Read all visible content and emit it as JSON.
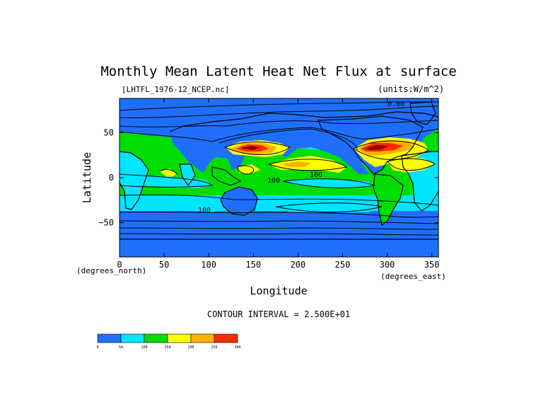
{
  "chart_data": {
    "type": "heatmap",
    "title": "Monthly Mean Latent Heat Net Flux at surface",
    "subtitle_left": "[LHTFL_1976-12_NCEP.nc]",
    "subtitle_right": "(units:W/m^2)",
    "xlabel": "Longitude",
    "ylabel": "Latitude",
    "x_unit_label": "(degrees_east)",
    "y_unit_label": "(degrees_north)",
    "xlim": [
      0,
      357.5
    ],
    "ylim": [
      -88,
      88
    ],
    "x_ticks": [
      "0",
      "50",
      "100",
      "150",
      "200",
      "250",
      "300",
      "350"
    ],
    "y_ticks": [
      "50",
      "0",
      "−50"
    ],
    "footer": "CONTOUR INTERVAL = 2.500E+01",
    "colorbar": {
      "levels": [
        0,
        50,
        100,
        150,
        200,
        250,
        300
      ],
      "labels": [
        "0",
        "50",
        "100",
        "150",
        "200",
        "250",
        "300"
      ],
      "colors": [
        "#1f6fff",
        "#00e5ff",
        "#00dd00",
        "#ffff00",
        "#ffb000",
        "#ff2a00"
      ]
    },
    "contour_labels": [
      "100",
      "100",
      "100",
      "0.00"
    ],
    "grid": false,
    "colors": {
      "very_low": "#1f6fff",
      "low": "#00e5ff",
      "mid": "#00dd00",
      "high": "#ffff00",
      "very_high": "#ffb000",
      "extreme": "#ff2a00",
      "peak": "#8a0000"
    }
  }
}
